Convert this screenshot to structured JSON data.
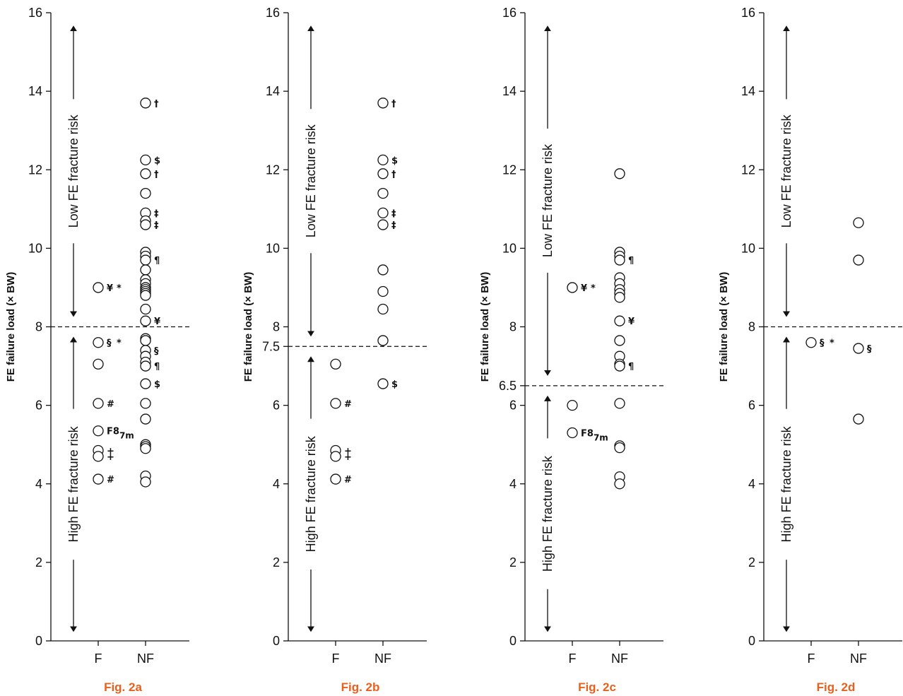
{
  "figure_color": "#e8601c",
  "chart_data": [
    {
      "type": "scatter",
      "caption": "Fig. 2a",
      "ylabel": "FE failure load (× BW)",
      "ylim": [
        0,
        16
      ],
      "yticks": [
        0,
        2,
        4,
        6,
        8,
        10,
        12,
        14,
        16
      ],
      "categories": [
        "F",
        "NF"
      ],
      "threshold": 8,
      "threshold_label": "",
      "upper_region_label": "Low FE fracture risk",
      "lower_region_label": "High FE fracture risk",
      "points": [
        {
          "cat": "F",
          "y": 9.0,
          "mark": "¥",
          "mark2": "*"
        },
        {
          "cat": "F",
          "y": 7.6,
          "mark": "§",
          "mark2": "*"
        },
        {
          "cat": "F",
          "y": 7.05
        },
        {
          "cat": "F",
          "y": 6.05,
          "mark": "#"
        },
        {
          "cat": "F",
          "y": 5.35,
          "mark": "F8",
          "sub": "7m"
        },
        {
          "cat": "F",
          "y": 4.85,
          "mark": "+"
        },
        {
          "cat": "F",
          "y": 4.7,
          "mark": "+"
        },
        {
          "cat": "F",
          "y": 4.12,
          "mark": "#"
        },
        {
          "cat": "NF",
          "y": 13.7,
          "mark": "†"
        },
        {
          "cat": "NF",
          "y": 12.25,
          "mark": "$"
        },
        {
          "cat": "NF",
          "y": 11.9,
          "mark": "†"
        },
        {
          "cat": "NF",
          "y": 11.4
        },
        {
          "cat": "NF",
          "y": 10.9,
          "mark": "‡"
        },
        {
          "cat": "NF",
          "y": 10.7
        },
        {
          "cat": "NF",
          "y": 10.6,
          "mark": "‡"
        },
        {
          "cat": "NF",
          "y": 9.9
        },
        {
          "cat": "NF",
          "y": 9.8
        },
        {
          "cat": "NF",
          "y": 9.7,
          "mark": "¶"
        },
        {
          "cat": "NF",
          "y": 9.45
        },
        {
          "cat": "NF",
          "y": 9.2
        },
        {
          "cat": "NF",
          "y": 9.1
        },
        {
          "cat": "NF",
          "y": 9.0
        },
        {
          "cat": "NF",
          "y": 8.95
        },
        {
          "cat": "NF",
          "y": 8.9
        },
        {
          "cat": "NF",
          "y": 8.85
        },
        {
          "cat": "NF",
          "y": 8.8
        },
        {
          "cat": "NF",
          "y": 8.45
        },
        {
          "cat": "NF",
          "y": 8.15,
          "mark": "¥"
        },
        {
          "cat": "NF",
          "y": 7.7
        },
        {
          "cat": "NF",
          "y": 7.65
        },
        {
          "cat": "NF",
          "y": 7.4,
          "mark": "§"
        },
        {
          "cat": "NF",
          "y": 7.25
        },
        {
          "cat": "NF",
          "y": 7.1
        },
        {
          "cat": "NF",
          "y": 7.0,
          "mark": "¶"
        },
        {
          "cat": "NF",
          "y": 6.55,
          "mark": "$"
        },
        {
          "cat": "NF",
          "y": 6.05
        },
        {
          "cat": "NF",
          "y": 5.65
        },
        {
          "cat": "NF",
          "y": 5.0
        },
        {
          "cat": "NF",
          "y": 4.95
        },
        {
          "cat": "NF",
          "y": 4.9
        },
        {
          "cat": "NF",
          "y": 4.2
        },
        {
          "cat": "NF",
          "y": 4.05
        }
      ]
    },
    {
      "type": "scatter",
      "caption": "Fig. 2b",
      "ylabel": "FE failure load (× BW)",
      "ylim": [
        0,
        16
      ],
      "yticks": [
        0,
        2,
        4,
        6,
        8,
        10,
        12,
        14,
        16
      ],
      "categories": [
        "F",
        "NF"
      ],
      "threshold": 7.5,
      "threshold_label": "7.5",
      "upper_region_label": "Low FE fracture risk",
      "lower_region_label": "High FE fracture risk",
      "points": [
        {
          "cat": "F",
          "y": 7.05
        },
        {
          "cat": "F",
          "y": 6.05,
          "mark": "#"
        },
        {
          "cat": "F",
          "y": 4.85,
          "mark": "+"
        },
        {
          "cat": "F",
          "y": 4.7,
          "mark": "+"
        },
        {
          "cat": "F",
          "y": 4.12,
          "mark": "#"
        },
        {
          "cat": "NF",
          "y": 13.7,
          "mark": "†"
        },
        {
          "cat": "NF",
          "y": 12.25,
          "mark": "$"
        },
        {
          "cat": "NF",
          "y": 11.9,
          "mark": "†"
        },
        {
          "cat": "NF",
          "y": 11.4
        },
        {
          "cat": "NF",
          "y": 10.9,
          "mark": "‡"
        },
        {
          "cat": "NF",
          "y": 10.6,
          "mark": "‡"
        },
        {
          "cat": "NF",
          "y": 9.45
        },
        {
          "cat": "NF",
          "y": 8.9
        },
        {
          "cat": "NF",
          "y": 8.45
        },
        {
          "cat": "NF",
          "y": 7.65
        },
        {
          "cat": "NF",
          "y": 6.55,
          "mark": "$"
        }
      ]
    },
    {
      "type": "scatter",
      "caption": "Fig. 2c",
      "ylabel": "FE failure load (× BW)",
      "ylim": [
        0,
        16
      ],
      "yticks": [
        0,
        2,
        4,
        6,
        8,
        10,
        12,
        14,
        16
      ],
      "categories": [
        "F",
        "NF"
      ],
      "threshold": 6.5,
      "threshold_label": "6.5",
      "upper_region_label": "Low FE fracture risk",
      "lower_region_label": "High FE fracture risk",
      "points": [
        {
          "cat": "F",
          "y": 9.0,
          "mark": "¥",
          "mark2": "*"
        },
        {
          "cat": "F",
          "y": 6.0
        },
        {
          "cat": "F",
          "y": 5.3,
          "mark": "F8",
          "sub": "7m"
        },
        {
          "cat": "NF",
          "y": 11.9
        },
        {
          "cat": "NF",
          "y": 9.9
        },
        {
          "cat": "NF",
          "y": 9.8
        },
        {
          "cat": "NF",
          "y": 9.7,
          "mark": "¶"
        },
        {
          "cat": "NF",
          "y": 9.25
        },
        {
          "cat": "NF",
          "y": 9.1
        },
        {
          "cat": "NF",
          "y": 8.95
        },
        {
          "cat": "NF",
          "y": 8.85
        },
        {
          "cat": "NF",
          "y": 8.75
        },
        {
          "cat": "NF",
          "y": 8.15,
          "mark": "¥"
        },
        {
          "cat": "NF",
          "y": 7.65
        },
        {
          "cat": "NF",
          "y": 7.25
        },
        {
          "cat": "NF",
          "y": 7.05
        },
        {
          "cat": "NF",
          "y": 7.0,
          "mark": "¶"
        },
        {
          "cat": "NF",
          "y": 6.05
        },
        {
          "cat": "NF",
          "y": 4.97
        },
        {
          "cat": "NF",
          "y": 4.92
        },
        {
          "cat": "NF",
          "y": 4.18
        },
        {
          "cat": "NF",
          "y": 4.0
        }
      ]
    },
    {
      "type": "scatter",
      "caption": "Fig. 2d",
      "ylabel": "FE failure load (× BW)",
      "ylim": [
        0,
        16
      ],
      "yticks": [
        0,
        2,
        4,
        6,
        8,
        10,
        12,
        14,
        16
      ],
      "categories": [
        "F",
        "NF"
      ],
      "threshold": 8,
      "threshold_label": "",
      "upper_region_label": "Low FE fracture risk",
      "lower_region_label": "High FE fracture risk",
      "points": [
        {
          "cat": "F",
          "y": 7.6,
          "mark": "§",
          "mark2": "*"
        },
        {
          "cat": "NF",
          "y": 10.65
        },
        {
          "cat": "NF",
          "y": 9.7
        },
        {
          "cat": "NF",
          "y": 7.45,
          "mark": "§"
        },
        {
          "cat": "NF",
          "y": 5.65
        }
      ]
    }
  ]
}
